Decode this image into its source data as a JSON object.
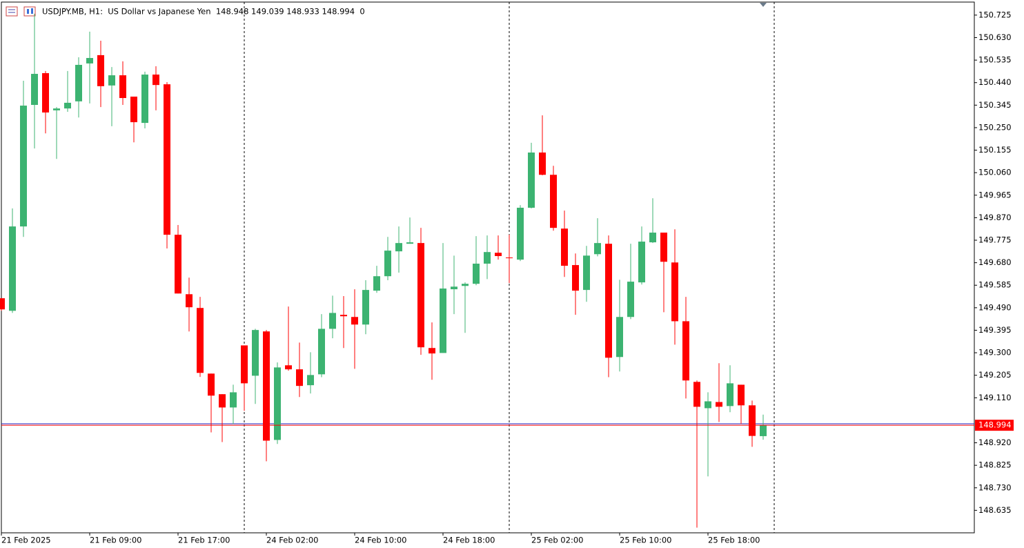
{
  "chart_data": {
    "type": "candlestick",
    "title": "USDJPY.MB, H1:  US Dollar vs Japanese Yen  148.948 149.039 148.933 148.994  0",
    "categories": [
      "21 Feb 2025",
      null,
      null,
      null,
      null,
      null,
      null,
      null,
      "21 Feb 09:00",
      null,
      null,
      null,
      null,
      null,
      null,
      null,
      "21 Feb 17:00",
      null,
      null,
      null,
      null,
      null,
      null,
      null,
      "24 Feb 02:00",
      null,
      null,
      null,
      null,
      null,
      null,
      null,
      "24 Feb 10:00",
      null,
      null,
      null,
      null,
      null,
      null,
      null,
      "24 Feb 18:00",
      null,
      null,
      null,
      null,
      null,
      null,
      null,
      "25 Feb 02:00",
      null,
      null,
      null,
      null,
      null,
      null,
      null,
      "25 Feb 10:00",
      null,
      null,
      null,
      null,
      null,
      null,
      null,
      "25 Feb 18:00",
      null,
      null,
      null,
      null,
      null
    ],
    "open": [
      149.53,
      149.477,
      149.833,
      150.346,
      150.48,
      150.323,
      150.331,
      150.361,
      150.521,
      150.556,
      150.428,
      150.471,
      150.381,
      150.27,
      150.474,
      150.433,
      149.798,
      149.547,
      149.489,
      149.212,
      149.125,
      149.069,
      149.331,
      149.203,
      149.39,
      148.932,
      149.247,
      149.23,
      149.163,
      149.209,
      149.401,
      149.46,
      149.451,
      149.419,
      149.562,
      149.623,
      149.728,
      149.76,
      149.763,
      149.32,
      149.299,
      149.568,
      149.582,
      149.591,
      149.676,
      149.722,
      149.702,
      149.693,
      149.912,
      150.145,
      150.051,
      149.824,
      149.67,
      149.565,
      149.716,
      149.76,
      149.282,
      149.451,
      149.597,
      149.766,
      149.807,
      149.681,
      149.433,
      149.177,
      149.066,
      149.092,
      149.075,
      149.165,
      149.078,
      148.948
    ],
    "high": [
      149.53,
      149.909,
      150.448,
      150.731,
      150.489,
      150.337,
      150.489,
      150.547,
      150.655,
      150.617,
      150.506,
      150.53,
      150.381,
      150.486,
      150.509,
      150.442,
      149.839,
      149.617,
      149.536,
      149.212,
      149.125,
      149.165,
      149.331,
      149.401,
      149.396,
      149.259,
      149.495,
      149.343,
      149.302,
      149.463,
      149.541,
      149.539,
      149.568,
      149.606,
      149.667,
      149.789,
      149.833,
      149.871,
      149.827,
      149.428,
      149.763,
      149.71,
      149.597,
      149.792,
      149.795,
      149.795,
      149.798,
      149.923,
      150.186,
      150.302,
      150.089,
      149.9,
      149.719,
      149.751,
      149.868,
      149.795,
      149.608,
      149.76,
      149.833,
      149.952,
      149.807,
      149.821,
      149.536,
      149.183,
      149.133,
      149.256,
      149.247,
      149.165,
      149.098,
      149.039
    ],
    "low": [
      149.477,
      149.468,
      149.789,
      150.162,
      150.226,
      150.118,
      150.317,
      150.293,
      150.352,
      150.337,
      150.256,
      150.346,
      150.188,
      150.247,
      150.323,
      149.74,
      149.55,
      149.39,
      149.198,
      148.964,
      148.923,
      148.999,
      149.055,
      149.084,
      148.842,
      148.915,
      149.224,
      149.113,
      149.128,
      149.197,
      149.361,
      149.32,
      149.232,
      149.378,
      149.553,
      149.606,
      149.638,
      149.76,
      149.291,
      149.186,
      149.299,
      149.463,
      149.384,
      149.585,
      149.611,
      149.693,
      149.594,
      149.687,
      149.909,
      150.049,
      149.815,
      149.62,
      149.46,
      149.515,
      149.707,
      149.197,
      149.221,
      149.442,
      149.588,
      149.763,
      149.471,
      149.334,
      149.107,
      148.562,
      148.778,
      149.008,
      149.049,
      148.999,
      148.903,
      148.933
    ],
    "close": [
      149.483,
      149.833,
      150.343,
      150.477,
      150.314,
      150.331,
      150.355,
      150.515,
      150.544,
      150.425,
      150.471,
      150.375,
      150.273,
      150.474,
      150.43,
      149.798,
      149.55,
      149.492,
      149.215,
      149.119,
      149.069,
      149.133,
      149.171,
      149.396,
      148.929,
      149.238,
      149.23,
      149.16,
      149.206,
      149.401,
      149.468,
      149.454,
      149.419,
      149.565,
      149.623,
      149.731,
      149.763,
      149.766,
      149.323,
      149.297,
      149.571,
      149.579,
      149.591,
      149.676,
      149.725,
      149.708,
      149.699,
      149.912,
      150.145,
      150.051,
      149.827,
      149.667,
      149.562,
      149.71,
      149.763,
      149.279,
      149.451,
      149.6,
      149.769,
      149.807,
      149.684,
      149.433,
      149.183,
      149.072,
      149.095,
      149.072,
      149.171,
      149.078,
      148.949,
      148.994
    ],
    "up_color": "#3cb371",
    "down_color": "#ff0000",
    "last_price": 148.994,
    "last_price_color": "#ff0000",
    "ylim": [
      148.54,
      150.78
    ],
    "yticks": [
      150.725,
      {
        "value": 150.63,
        "label": "150.630"
      },
      150.535,
      {
        "value": 150.44,
        "label": "150.440"
      },
      150.345,
      {
        "value": 150.25,
        "label": "150.250"
      },
      150.155,
      {
        "value": 150.06,
        "label": "150.060"
      },
      149.965,
      {
        "value": 149.87,
        "label": "149.870"
      },
      149.775,
      {
        "value": 149.68,
        "label": "149.680"
      },
      149.585,
      {
        "value": 149.49,
        "label": "149.490"
      },
      149.395,
      {
        "value": 149.3,
        "label": "149.300"
      },
      149.205,
      {
        "value": 149.11,
        "label": "149.110"
      },
      {
        "value": 148.92,
        "label": "148.920"
      },
      148.825,
      {
        "value": 148.73,
        "label": "148.730"
      },
      148.635
    ],
    "grid": false
  }
}
